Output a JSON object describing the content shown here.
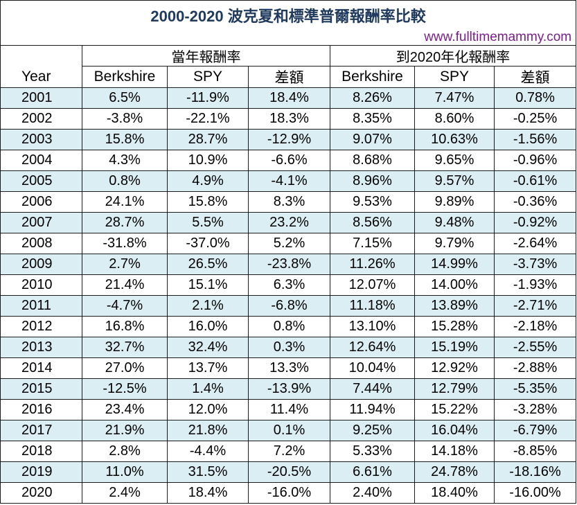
{
  "title": "2000-2020 波克夏和標準普爾報酬率比較",
  "website": "www.fulltimemammy.com",
  "groups": {
    "annual": "當年報酬率",
    "annualized": "到2020年化報酬率"
  },
  "headers": {
    "year": "Year",
    "berkshire": "Berkshire",
    "spy": "SPY",
    "diff": "差額",
    "berkshire2": "Berkshire",
    "spy2": "SPY",
    "diff2": "差額"
  },
  "rows": [
    {
      "year": "2001",
      "b1": "6.5%",
      "s1": "-11.9%",
      "d1": "18.4%",
      "b2": "8.26%",
      "s2": "7.47%",
      "d2": "0.78%"
    },
    {
      "year": "2002",
      "b1": "-3.8%",
      "s1": "-22.1%",
      "d1": "18.3%",
      "b2": "8.35%",
      "s2": "8.60%",
      "d2": "-0.25%"
    },
    {
      "year": "2003",
      "b1": "15.8%",
      "s1": "28.7%",
      "d1": "-12.9%",
      "b2": "9.07%",
      "s2": "10.63%",
      "d2": "-1.56%"
    },
    {
      "year": "2004",
      "b1": "4.3%",
      "s1": "10.9%",
      "d1": "-6.6%",
      "b2": "8.68%",
      "s2": "9.65%",
      "d2": "-0.96%"
    },
    {
      "year": "2005",
      "b1": "0.8%",
      "s1": "4.9%",
      "d1": "-4.1%",
      "b2": "8.96%",
      "s2": "9.57%",
      "d2": "-0.61%"
    },
    {
      "year": "2006",
      "b1": "24.1%",
      "s1": "15.8%",
      "d1": "8.3%",
      "b2": "9.53%",
      "s2": "9.89%",
      "d2": "-0.36%"
    },
    {
      "year": "2007",
      "b1": "28.7%",
      "s1": "5.5%",
      "d1": "23.2%",
      "b2": "8.56%",
      "s2": "9.48%",
      "d2": "-0.92%"
    },
    {
      "year": "2008",
      "b1": "-31.8%",
      "s1": "-37.0%",
      "d1": "5.2%",
      "b2": "7.15%",
      "s2": "9.79%",
      "d2": "-2.64%"
    },
    {
      "year": "2009",
      "b1": "2.7%",
      "s1": "26.5%",
      "d1": "-23.8%",
      "b2": "11.26%",
      "s2": "14.99%",
      "d2": "-3.73%"
    },
    {
      "year": "2010",
      "b1": "21.4%",
      "s1": "15.1%",
      "d1": "6.3%",
      "b2": "12.07%",
      "s2": "14.00%",
      "d2": "-1.93%"
    },
    {
      "year": "2011",
      "b1": "-4.7%",
      "s1": "2.1%",
      "d1": "-6.8%",
      "b2": "11.18%",
      "s2": "13.89%",
      "d2": "-2.71%"
    },
    {
      "year": "2012",
      "b1": "16.8%",
      "s1": "16.0%",
      "d1": "0.8%",
      "b2": "13.10%",
      "s2": "15.28%",
      "d2": "-2.18%"
    },
    {
      "year": "2013",
      "b1": "32.7%",
      "s1": "32.4%",
      "d1": "0.3%",
      "b2": "12.64%",
      "s2": "15.19%",
      "d2": "-2.55%"
    },
    {
      "year": "2014",
      "b1": "27.0%",
      "s1": "13.7%",
      "d1": "13.3%",
      "b2": "10.04%",
      "s2": "12.92%",
      "d2": "-2.88%"
    },
    {
      "year": "2015",
      "b1": "-12.5%",
      "s1": "1.4%",
      "d1": "-13.9%",
      "b2": "7.44%",
      "s2": "12.79%",
      "d2": "-5.35%"
    },
    {
      "year": "2016",
      "b1": "23.4%",
      "s1": "12.0%",
      "d1": "11.4%",
      "b2": "11.94%",
      "s2": "15.22%",
      "d2": "-3.28%"
    },
    {
      "year": "2017",
      "b1": "21.9%",
      "s1": "21.8%",
      "d1": "0.1%",
      "b2": "9.25%",
      "s2": "16.04%",
      "d2": "-6.79%"
    },
    {
      "year": "2018",
      "b1": "2.8%",
      "s1": "-4.4%",
      "d1": "7.2%",
      "b2": "5.33%",
      "s2": "14.18%",
      "d2": "-8.85%"
    },
    {
      "year": "2019",
      "b1": "11.0%",
      "s1": "31.5%",
      "d1": "-20.5%",
      "b2": "6.61%",
      "s2": "24.78%",
      "d2": "-18.16%"
    },
    {
      "year": "2020",
      "b1": "2.4%",
      "s1": "18.4%",
      "d1": "-16.0%",
      "b2": "2.40%",
      "s2": "18.40%",
      "d2": "-16.00%"
    }
  ],
  "colors": {
    "title": "#1f3a5c",
    "website": "#7a1f8a",
    "row_shade": "#daeef3"
  }
}
